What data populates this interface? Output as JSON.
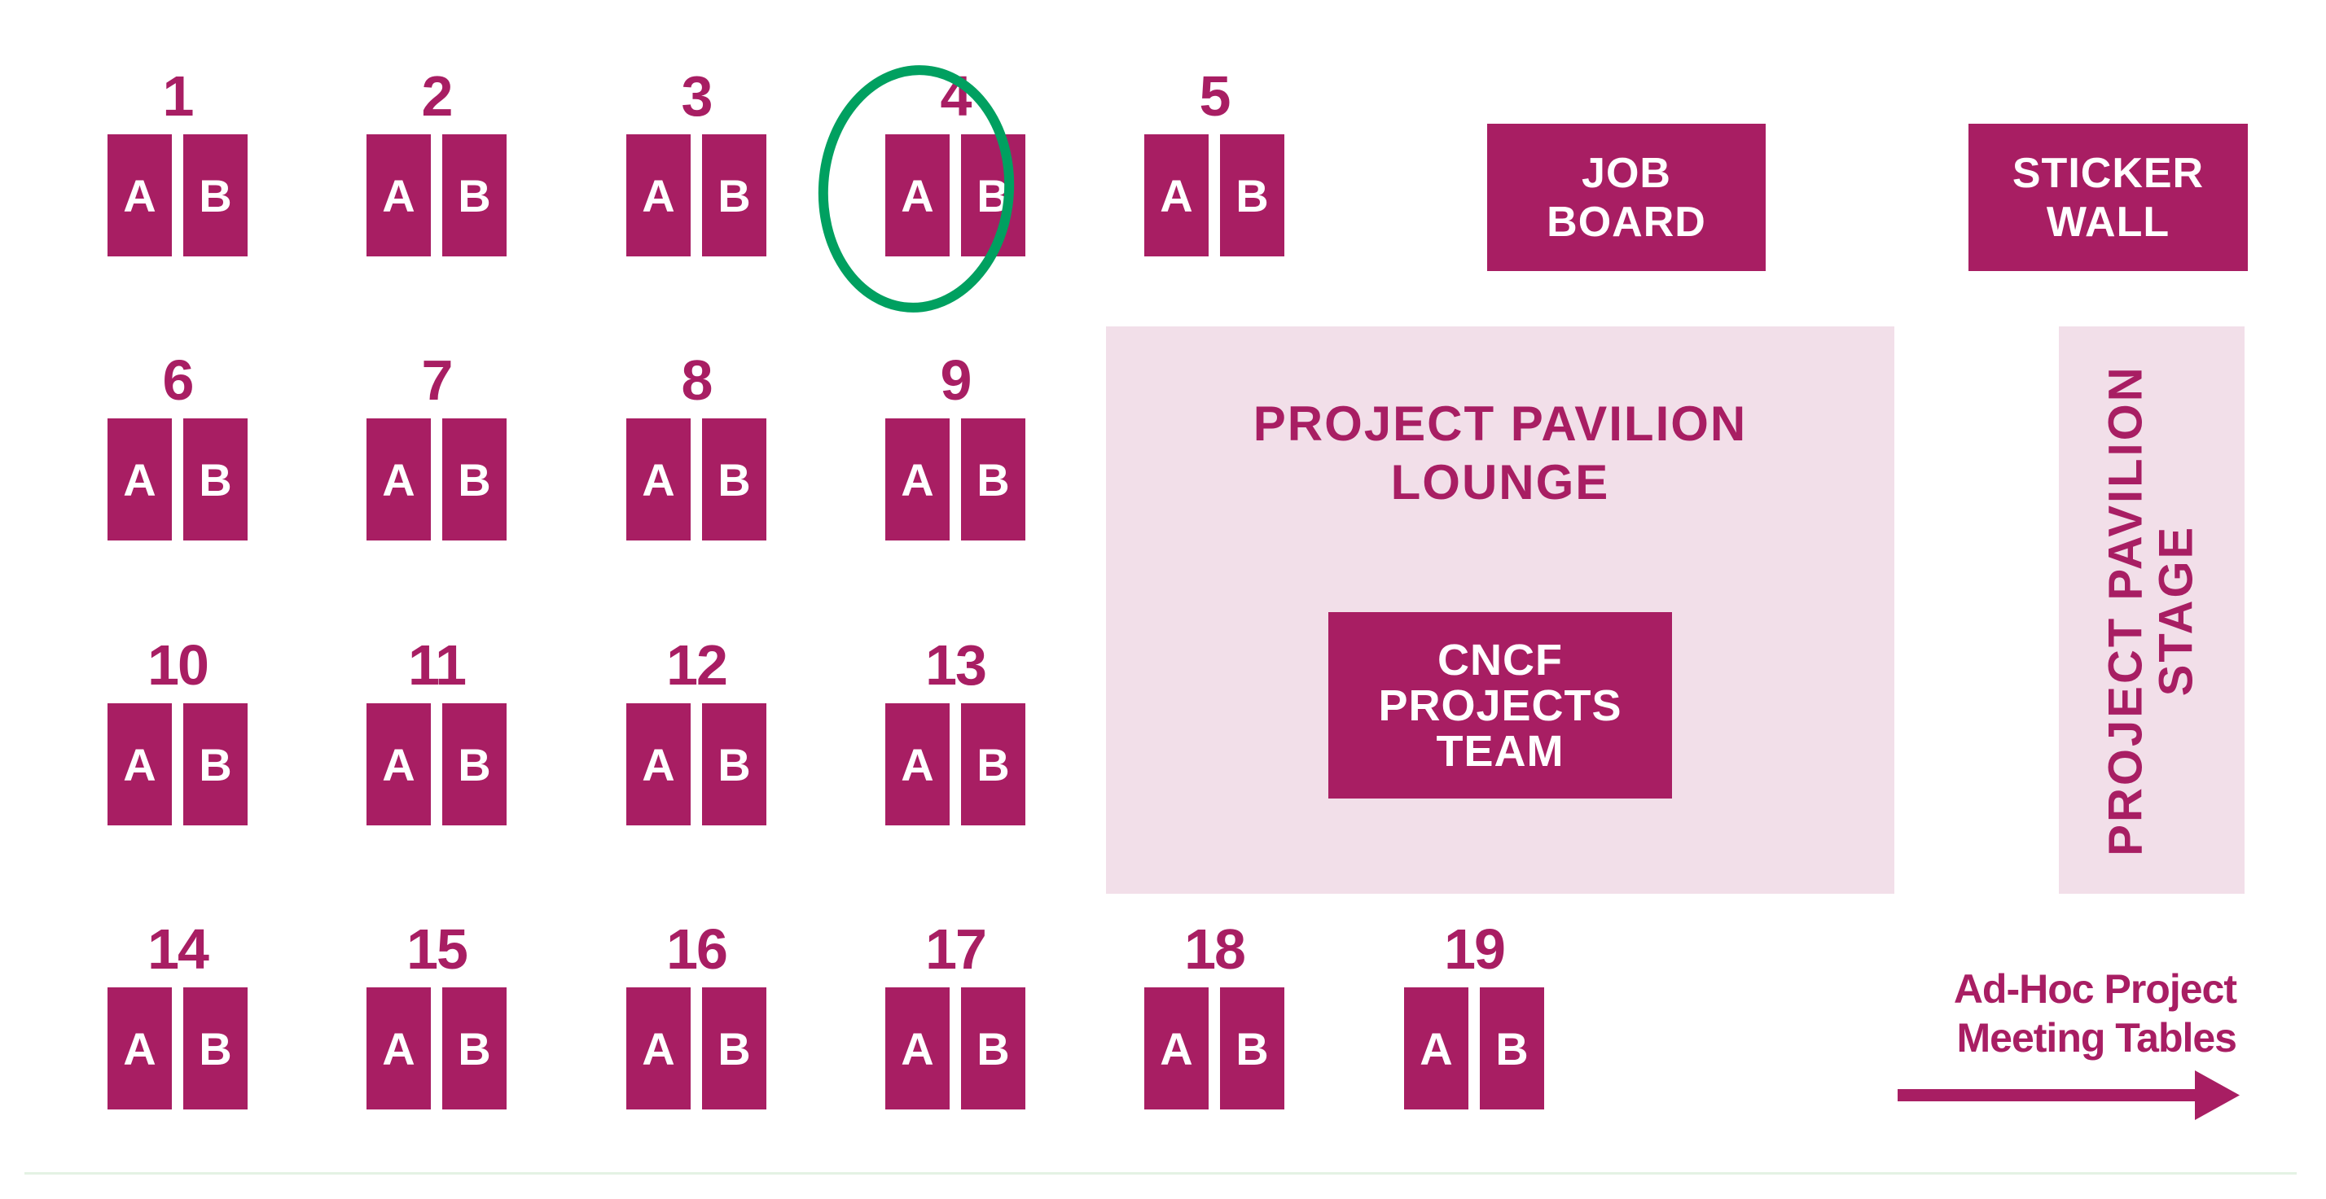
{
  "colors": {
    "booth": "#a81e63",
    "area": "#f2dfe9",
    "highlight_circle": "#00a060"
  },
  "booths": [
    {
      "number": "1",
      "a": "A",
      "b": "B"
    },
    {
      "number": "2",
      "a": "A",
      "b": "B"
    },
    {
      "number": "3",
      "a": "A",
      "b": "B"
    },
    {
      "number": "4",
      "a": "A",
      "b": "B",
      "highlighted": true
    },
    {
      "number": "5",
      "a": "A",
      "b": "B"
    },
    {
      "number": "6",
      "a": "A",
      "b": "B"
    },
    {
      "number": "7",
      "a": "A",
      "b": "B"
    },
    {
      "number": "8",
      "a": "A",
      "b": "B"
    },
    {
      "number": "9",
      "a": "A",
      "b": "B"
    },
    {
      "number": "10",
      "a": "A",
      "b": "B"
    },
    {
      "number": "11",
      "a": "A",
      "b": "B"
    },
    {
      "number": "12",
      "a": "A",
      "b": "B"
    },
    {
      "number": "13",
      "a": "A",
      "b": "B"
    },
    {
      "number": "14",
      "a": "A",
      "b": "B"
    },
    {
      "number": "15",
      "a": "A",
      "b": "B"
    },
    {
      "number": "16",
      "a": "A",
      "b": "B"
    },
    {
      "number": "17",
      "a": "A",
      "b": "B"
    },
    {
      "number": "18",
      "a": "A",
      "b": "B"
    },
    {
      "number": "19",
      "a": "A",
      "b": "B"
    }
  ],
  "job_board": {
    "line1": "JOB",
    "line2": "BOARD"
  },
  "sticker_wall": {
    "line1": "STICKER",
    "line2": "WALL"
  },
  "lounge": {
    "line1": "PROJECT PAVILION",
    "line2": "LOUNGE"
  },
  "cncf_team": {
    "line1": "CNCF",
    "line2": "PROJECTS",
    "line3": "TEAM"
  },
  "stage": {
    "line1": "PROJECT PAVILION",
    "line2": "STAGE"
  },
  "adhoc": {
    "line1": "Ad-Hoc Project",
    "line2": "Meeting Tables",
    "arrow_icon": "arrow-right-icon"
  }
}
